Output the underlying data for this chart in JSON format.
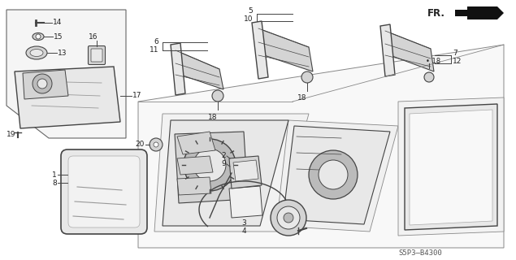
{
  "bg_color": "#ffffff",
  "diagram_code": "S5P3–B4300",
  "line_color": "#444444",
  "text_color": "#222222",
  "fill_light": "#e8e8e8",
  "fill_mid": "#d4d4d4",
  "fill_dark": "#bbbbbb"
}
